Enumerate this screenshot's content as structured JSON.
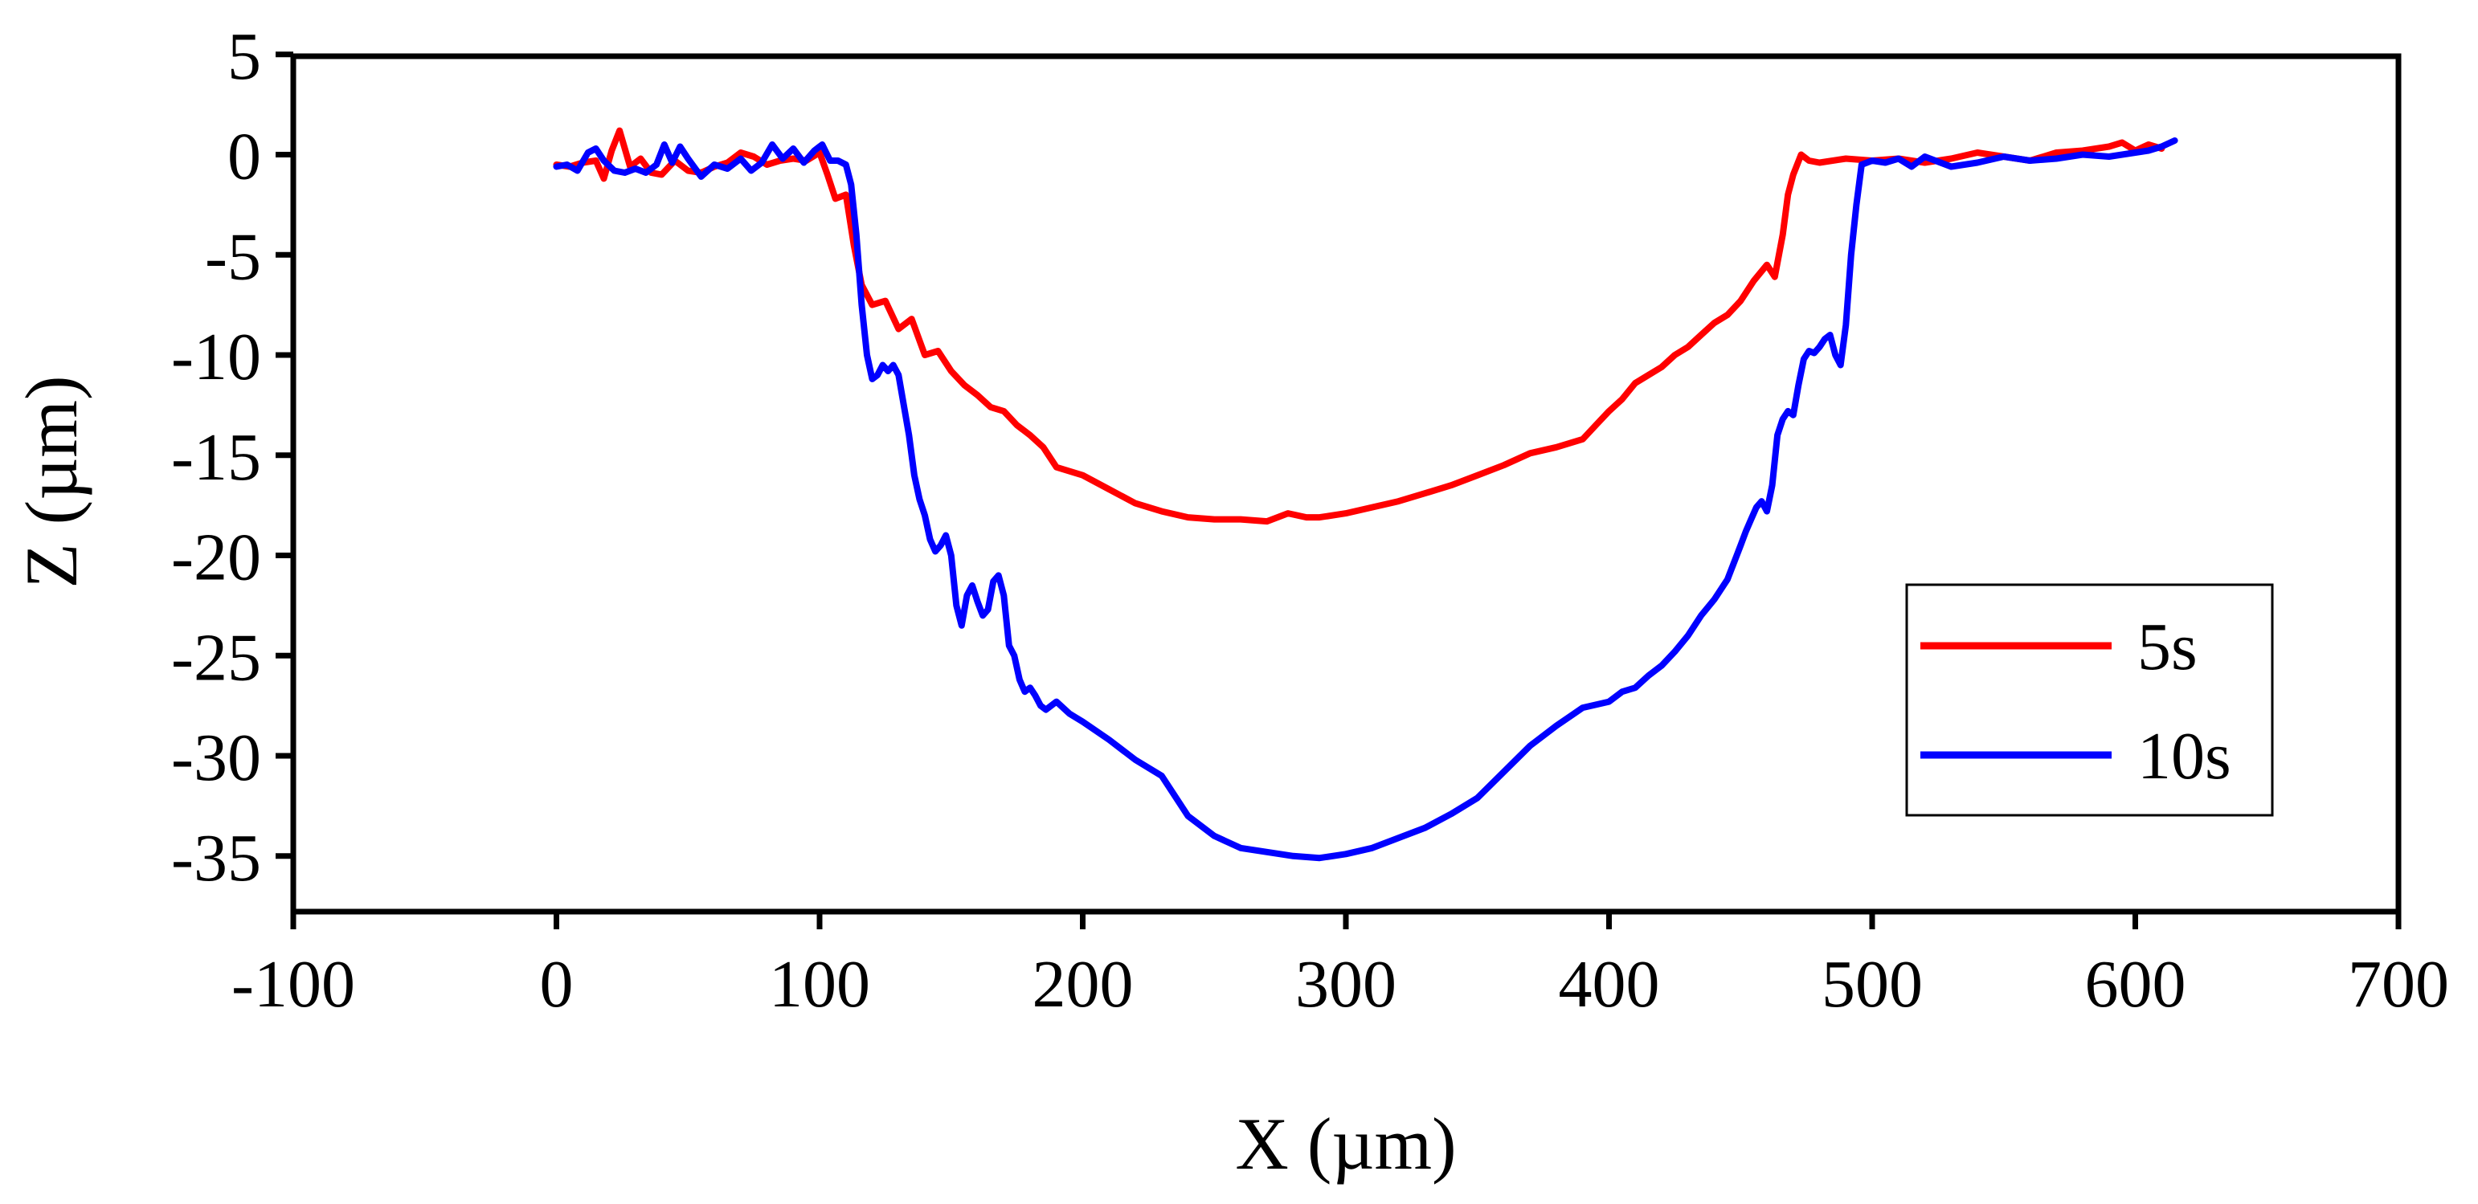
{
  "chart_data": {
    "type": "line",
    "title": "",
    "xlabel": "X (µm)",
    "ylabel": "Z (µm)",
    "xlim": [
      -100,
      700
    ],
    "ylim": [
      -38,
      5
    ],
    "xticks": [
      -100,
      0,
      100,
      200,
      300,
      400,
      500,
      600,
      700
    ],
    "yticks": [
      5,
      0,
      -5,
      -10,
      -15,
      -20,
      -25,
      -30,
      -35
    ],
    "x_tick_labels": [
      "-100",
      "0",
      "100",
      "200",
      "300",
      "400",
      "500",
      "600",
      "700"
    ],
    "y_tick_labels": [
      "5",
      "0",
      "-5",
      "-10",
      "-15",
      "-20",
      "-25",
      "-30",
      "-35"
    ],
    "grid": false,
    "legend_position": "right",
    "series": [
      {
        "name": "5s",
        "color": "#ff0000",
        "x": [
          0,
          5,
          10,
          15,
          18,
          21,
          24,
          28,
          32,
          36,
          40,
          45,
          50,
          55,
          60,
          65,
          70,
          75,
          80,
          85,
          90,
          95,
          100,
          103,
          106,
          110,
          113,
          116,
          120,
          125,
          130,
          135,
          140,
          145,
          150,
          155,
          160,
          165,
          170,
          175,
          180,
          185,
          190,
          200,
          210,
          220,
          230,
          240,
          250,
          260,
          270,
          278,
          285,
          290,
          300,
          310,
          320,
          330,
          340,
          350,
          360,
          370,
          380,
          390,
          395,
          400,
          405,
          410,
          415,
          420,
          425,
          430,
          435,
          440,
          445,
          450,
          455,
          460,
          463,
          466,
          468,
          470,
          473,
          476,
          480,
          490,
          500,
          510,
          520,
          530,
          540,
          550,
          560,
          570,
          580,
          590,
          595,
          600,
          605,
          610
        ],
        "values": [
          -0.5,
          -0.6,
          -0.4,
          -0.3,
          -1.2,
          0.2,
          1.2,
          -0.6,
          -0.2,
          -0.9,
          -1.0,
          -0.3,
          -0.8,
          -0.9,
          -0.6,
          -0.4,
          0.1,
          -0.1,
          -0.5,
          -0.3,
          -0.2,
          -0.3,
          0.1,
          -1.0,
          -2.2,
          -2.0,
          -4.5,
          -6.5,
          -7.5,
          -7.3,
          -8.7,
          -8.2,
          -10.0,
          -9.8,
          -10.8,
          -11.5,
          -12.0,
          -12.6,
          -12.8,
          -13.5,
          -14.0,
          -14.6,
          -15.6,
          -16.0,
          -16.7,
          -17.4,
          -17.8,
          -18.1,
          -18.2,
          -18.2,
          -18.3,
          -17.9,
          -18.1,
          -18.1,
          -17.9,
          -17.6,
          -17.3,
          -16.9,
          -16.5,
          -16.0,
          -15.5,
          -14.9,
          -14.6,
          -14.2,
          -13.5,
          -12.8,
          -12.2,
          -11.4,
          -11.0,
          -10.6,
          -10.0,
          -9.6,
          -9.0,
          -8.4,
          -8.0,
          -7.3,
          -6.3,
          -5.5,
          -6.1,
          -4.0,
          -2.0,
          -1.0,
          0.0,
          -0.3,
          -0.4,
          -0.2,
          -0.3,
          -0.2,
          -0.4,
          -0.2,
          0.1,
          -0.1,
          -0.3,
          0.1,
          0.2,
          0.4,
          0.6,
          0.2,
          0.5,
          0.3
        ]
      },
      {
        "name": "10s",
        "color": "#0000ff",
        "x": [
          0,
          4,
          8,
          12,
          15,
          18,
          22,
          26,
          30,
          34,
          38,
          41,
          44,
          47,
          50,
          55,
          60,
          65,
          70,
          74,
          78,
          82,
          86,
          90,
          94,
          98,
          101,
          104,
          107,
          110,
          112,
          114,
          116,
          118,
          120,
          122,
          124,
          126,
          128,
          130,
          132,
          134,
          136,
          138,
          140,
          142,
          144,
          146,
          148,
          150,
          152,
          154,
          156,
          158,
          160,
          162,
          164,
          166,
          168,
          170,
          172,
          174,
          176,
          178,
          180,
          182,
          184,
          186,
          190,
          195,
          200,
          210,
          220,
          230,
          240,
          250,
          260,
          270,
          280,
          290,
          300,
          310,
          320,
          330,
          340,
          350,
          360,
          370,
          380,
          390,
          400,
          405,
          410,
          415,
          420,
          425,
          430,
          435,
          440,
          445,
          450,
          452,
          454,
          456,
          458,
          460,
          462,
          464,
          466,
          468,
          470,
          472,
          474,
          476,
          478,
          480,
          482,
          484,
          486,
          488,
          490,
          492,
          494,
          496,
          500,
          505,
          510,
          515,
          520,
          530,
          540,
          550,
          560,
          570,
          580,
          590,
          600,
          605,
          610,
          615
        ],
        "values": [
          -0.6,
          -0.5,
          -0.8,
          0.1,
          0.3,
          -0.3,
          -0.8,
          -0.9,
          -0.7,
          -0.9,
          -0.5,
          0.5,
          -0.4,
          0.4,
          -0.2,
          -1.1,
          -0.5,
          -0.7,
          -0.2,
          -0.8,
          -0.4,
          0.5,
          -0.2,
          0.3,
          -0.4,
          0.2,
          0.5,
          -0.3,
          -0.3,
          -0.5,
          -1.5,
          -4.0,
          -7.5,
          -10.0,
          -11.2,
          -11.0,
          -10.5,
          -10.8,
          -10.5,
          -11.0,
          -12.5,
          -14.0,
          -16.0,
          -17.2,
          -18.0,
          -19.2,
          -19.8,
          -19.5,
          -19.0,
          -20.0,
          -22.5,
          -23.5,
          -22.0,
          -21.5,
          -22.3,
          -23.0,
          -22.7,
          -21.3,
          -21.0,
          -22.0,
          -24.5,
          -25.0,
          -26.2,
          -26.8,
          -26.6,
          -27.0,
          -27.5,
          -27.7,
          -27.3,
          -27.9,
          -28.3,
          -29.2,
          -30.2,
          -31.0,
          -33.0,
          -34.0,
          -34.6,
          -34.8,
          -35.0,
          -35.1,
          -34.9,
          -34.6,
          -34.1,
          -33.6,
          -32.9,
          -32.1,
          -30.8,
          -29.5,
          -28.5,
          -27.6,
          -27.3,
          -26.8,
          -26.6,
          -26.0,
          -25.5,
          -24.8,
          -24.0,
          -23.0,
          -22.2,
          -21.2,
          -19.5,
          -18.8,
          -18.2,
          -17.6,
          -17.3,
          -17.8,
          -16.5,
          -14.0,
          -13.2,
          -12.8,
          -13.0,
          -11.5,
          -10.2,
          -9.8,
          -9.9,
          -9.6,
          -9.2,
          -9.0,
          -10.0,
          -10.5,
          -8.5,
          -5.0,
          -2.5,
          -0.5,
          -0.3,
          -0.4,
          -0.2,
          -0.6,
          -0.1,
          -0.6,
          -0.4,
          -0.1,
          -0.3,
          -0.2,
          0.0,
          -0.1,
          0.1,
          0.2,
          0.4,
          0.7
        ]
      }
    ]
  }
}
